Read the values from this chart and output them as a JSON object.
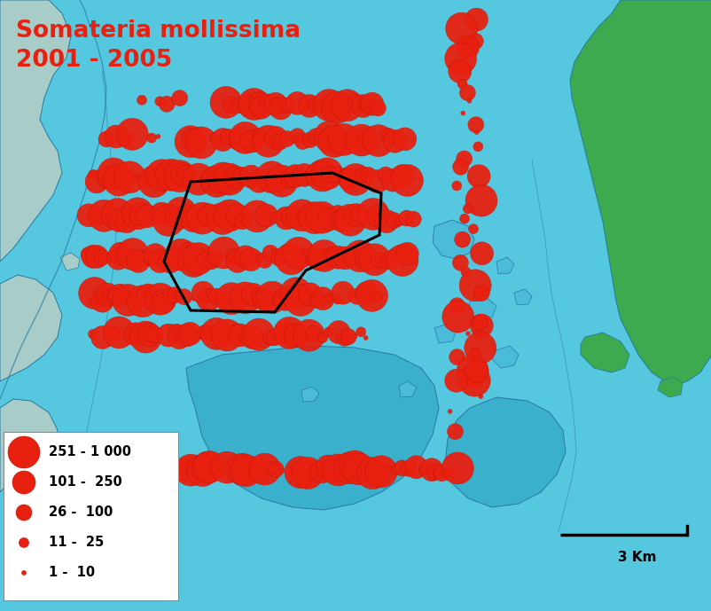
{
  "title_line1": "Somateria mollissima",
  "title_line2": "2001 - 2005",
  "title_color": "#e82010",
  "title_fontsize": 19,
  "dot_color": "#e82010",
  "dot_edge_color": "#cc1500",
  "legend_sizes": [
    18,
    13,
    9,
    5.5,
    2.5
  ],
  "legend_labels": [
    "251 - 1 000",
    "101 -  250",
    "26 -  100",
    "11 -  25",
    "1 -  10"
  ],
  "scale_bar_label": "3 Km",
  "figsize": [
    8.03,
    6.89
  ],
  "dpi": 100,
  "outer_water": "#55c8e0",
  "inner_water_dark": "#3ab0cc",
  "inner_water_medium": "#4abcda",
  "land_green": "#3daa50",
  "land_left": "#a8ccc8",
  "map_outline": "#2878a0",
  "polygon_color": "#000000"
}
